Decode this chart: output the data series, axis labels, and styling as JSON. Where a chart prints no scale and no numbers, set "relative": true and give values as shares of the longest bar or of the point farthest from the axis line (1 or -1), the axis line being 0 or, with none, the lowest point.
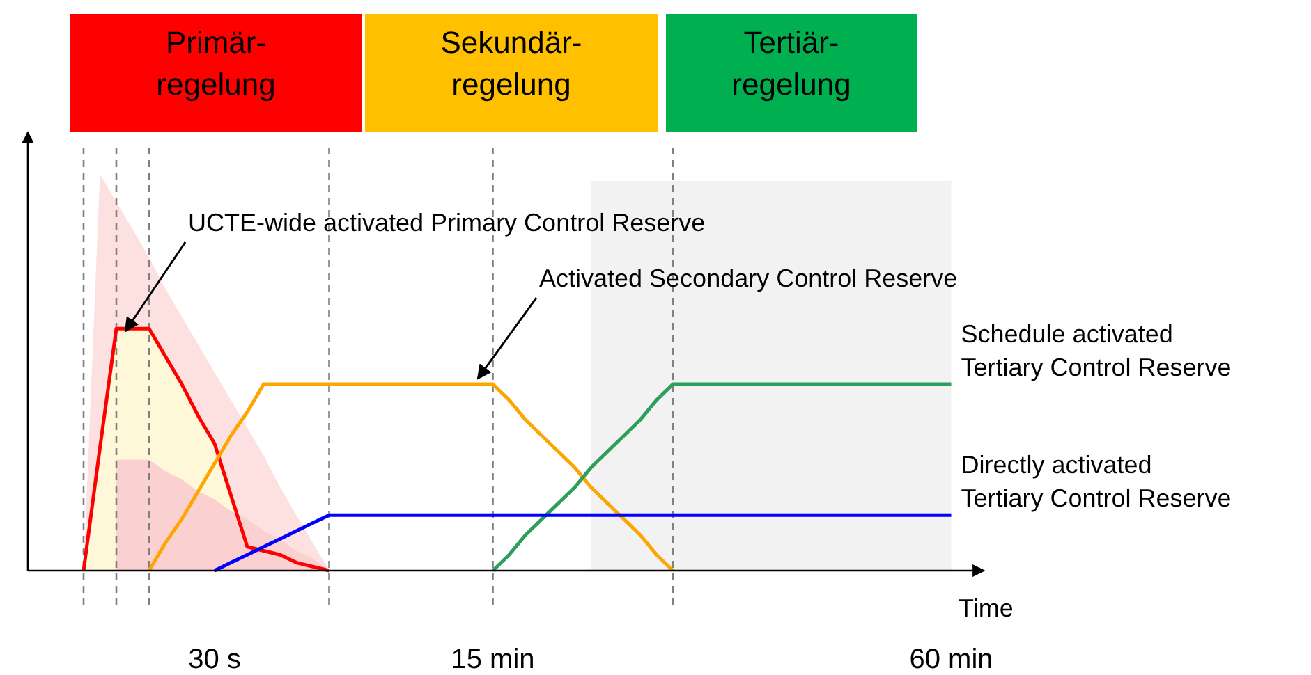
{
  "chart_data": {
    "type": "line",
    "relative": true,
    "xlabel": "Time",
    "categories": [
      null,
      null,
      null,
      null,
      null,
      null,
      null,
      null,
      "30 s",
      null,
      null,
      null,
      null,
      null,
      null,
      null,
      null,
      null,
      null,
      null,
      null,
      null,
      null,
      null,
      null,
      "15 min",
      null,
      null,
      null,
      null,
      null,
      null,
      null,
      null,
      null,
      null,
      null,
      null,
      null,
      null,
      null,
      null,
      null,
      null,
      null,
      null,
      null,
      null,
      null,
      null,
      null,
      null,
      null,
      "60 min",
      null,
      null
    ],
    "series": [
      {
        "type": "area",
        "color": "#fde0e0",
        "values": [
          0,
          1,
          0.93,
          0.86,
          0.79,
          0.71,
          0.64,
          0.57,
          0.5,
          0.43,
          0.36,
          0.29,
          0.21,
          0.14,
          0.07,
          0,
          null,
          null,
          null,
          null,
          null,
          null,
          null,
          null,
          null,
          null,
          null,
          null,
          null,
          null,
          null,
          null,
          null,
          null,
          null,
          null,
          null,
          null,
          null,
          null,
          null,
          null,
          null,
          null,
          null,
          null,
          null,
          null,
          null,
          null,
          null,
          null,
          null,
          null,
          null,
          null
        ]
      },
      {
        "type": "area",
        "color": "#fbd0d0",
        "values": [
          null,
          null,
          0.28,
          0.28,
          0.28,
          0.25,
          0.23,
          0.2,
          0.18,
          0.15,
          0.13,
          0.1,
          0.08,
          0.05,
          0.03,
          0,
          null,
          null,
          null,
          null,
          null,
          null,
          null,
          null,
          null,
          null,
          null,
          null,
          null,
          null,
          null,
          null,
          null,
          null,
          null,
          null,
          null,
          null,
          null,
          null,
          null,
          null,
          null,
          null,
          null,
          null,
          null,
          null,
          null,
          null,
          null,
          null,
          null,
          null,
          null,
          null
        ]
      },
      {
        "color": "#ff0000",
        "values": [
          0,
          0.31,
          0.61,
          0.61,
          0.61,
          0.54,
          0.47,
          0.39,
          0.32,
          0.19,
          0.06,
          0.05,
          0.04,
          0.02,
          0.01,
          0,
          null,
          null,
          null,
          null,
          null,
          null,
          null,
          null,
          null,
          null,
          null,
          null,
          null,
          null,
          null,
          null,
          null,
          null,
          null,
          null,
          null,
          null,
          null,
          null,
          null,
          null,
          null,
          null,
          null,
          null,
          null,
          null,
          null,
          null,
          null,
          null,
          null,
          null,
          null,
          null
        ]
      },
      {
        "color": "#ffa500",
        "values": [
          null,
          null,
          null,
          null,
          0,
          0.07,
          0.13,
          0.2,
          0.27,
          0.34,
          0.4,
          0.47,
          0.47,
          0.47,
          0.47,
          0.47,
          0.47,
          0.47,
          0.47,
          0.47,
          0.47,
          0.47,
          0.47,
          0.47,
          0.47,
          0.47,
          0.43,
          0.38,
          0.34,
          0.3,
          0.26,
          0.21,
          0.17,
          0.13,
          0.09,
          0.04,
          0,
          null,
          null,
          null,
          null,
          null,
          null,
          null,
          null,
          null,
          null,
          null,
          null,
          null,
          null,
          null,
          null,
          null,
          null,
          null
        ]
      },
      {
        "name": "Schedule activated Tertiary Control Reserve",
        "color": "#2e9e5b",
        "values": [
          null,
          null,
          null,
          null,
          null,
          null,
          null,
          null,
          null,
          null,
          null,
          null,
          null,
          null,
          null,
          null,
          null,
          null,
          null,
          null,
          null,
          null,
          null,
          null,
          null,
          0,
          0.04,
          0.09,
          0.13,
          0.17,
          0.21,
          0.26,
          0.3,
          0.34,
          0.38,
          0.43,
          0.47,
          0.47,
          0.47,
          0.47,
          0.47,
          0.47,
          0.47,
          0.47,
          0.47,
          0.47,
          0.47,
          0.47,
          0.47,
          0.47,
          0.47,
          0.47,
          0.47,
          0.47,
          null,
          null
        ]
      },
      {
        "name": "Directly activated Tertiary Control Reserve",
        "color": "#0000ff",
        "values": [
          null,
          null,
          null,
          null,
          null,
          null,
          null,
          null,
          0,
          0.02,
          0.04,
          0.06,
          0.08,
          0.1,
          0.12,
          0.14,
          0.14,
          0.14,
          0.14,
          0.14,
          0.14,
          0.14,
          0.14,
          0.14,
          0.14,
          0.14,
          0.14,
          0.14,
          0.14,
          0.14,
          0.14,
          0.14,
          0.14,
          0.14,
          0.14,
          0.14,
          0.14,
          0.14,
          0.14,
          0.14,
          0.14,
          0.14,
          0.14,
          0.14,
          0.14,
          0.14,
          0.14,
          0.14,
          0.14,
          0.14,
          0.14,
          0.14,
          0.14,
          0.14,
          null,
          null
        ]
      }
    ],
    "annotations": [
      "Primär-\nregelung",
      "Sekundär-\nregelung",
      "Tertiär-\nregelung",
      "UCTE-wide activated Primary Control Reserve",
      "Activated Secondary Control Reserve"
    ]
  }
}
